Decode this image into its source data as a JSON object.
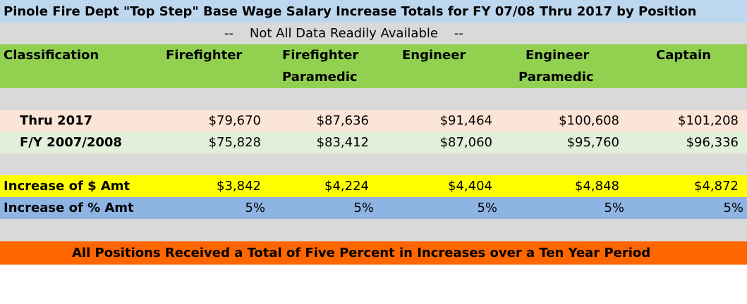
{
  "title": "Pinole Fire Dept \"Top Step\" Base Wage Salary Increase Totals  for FY 07/08 Thru 2017 by Position",
  "subtitle": "--    Not All Data Readily Available    --",
  "headers": {
    "classification": "Classification",
    "firefighter": "Firefighter",
    "ff_paramedic_1": "Firefighter",
    "ff_paramedic_2": "Paramedic",
    "engineer": "Engineer",
    "eng_paramedic_1": "Engineer",
    "eng_paramedic_2": "Paramedic",
    "captain": "Captain"
  },
  "rows": {
    "thru": {
      "label": "Thru 2017",
      "values": [
        "$79,670",
        "$87,636",
        "$91,464",
        "$100,608",
        "$101,208"
      ]
    },
    "fy": {
      "label": "F/Y 2007/2008",
      "values": [
        "$75,828",
        "$83,412",
        "$87,060",
        "$95,760",
        "$96,336"
      ]
    },
    "increase_amt": {
      "label": "Increase of $ Amt",
      "values": [
        "$3,842",
        "$4,224",
        "$4,404",
        "$4,848",
        "$4,872"
      ]
    },
    "increase_pct": {
      "label": "Increase of % Amt",
      "values": [
        "5%",
        "5%",
        "5%",
        "5%",
        "5%"
      ]
    }
  },
  "footer": "All Positions Received a Total of Five Percent in Increases over a Ten Year Period"
}
